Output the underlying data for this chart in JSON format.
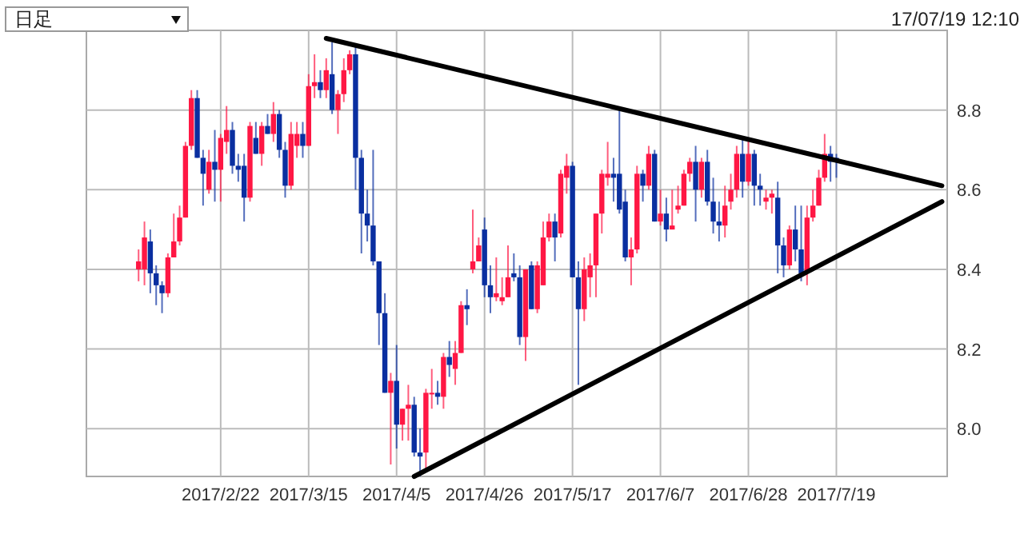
{
  "chart_data": {
    "type": "candlestick",
    "annotations": [
      "日足",
      "17/07/19 12:10"
    ],
    "grid": true,
    "ylim": [
      7.88,
      9.0
    ],
    "categories": [
      null,
      null,
      null,
      null,
      null,
      null,
      null,
      null,
      null,
      null,
      null,
      null,
      null,
      null,
      null,
      null,
      null,
      null,
      null,
      null,
      null,
      null,
      "2017/2/22",
      null,
      null,
      null,
      null,
      null,
      null,
      null,
      null,
      null,
      null,
      null,
      null,
      null,
      null,
      "2017/3/15",
      null,
      null,
      null,
      null,
      null,
      null,
      null,
      null,
      null,
      null,
      null,
      null,
      null,
      null,
      "2017/4/5",
      null,
      null,
      null,
      null,
      null,
      null,
      null,
      null,
      null,
      null,
      null,
      null,
      null,
      null,
      "2017/4/26",
      null,
      null,
      null,
      null,
      null,
      null,
      null,
      null,
      null,
      null,
      null,
      null,
      null,
      null,
      "2017/5/17",
      null,
      null,
      null,
      null,
      null,
      null,
      null,
      null,
      null,
      null,
      null,
      null,
      null,
      null,
      "2017/6/7",
      null,
      null,
      null,
      null,
      null,
      null,
      null,
      null,
      null,
      null,
      null,
      null,
      null,
      null,
      "2017/6/28",
      null,
      null,
      null,
      null,
      null,
      null,
      null,
      null,
      null,
      null,
      null,
      null,
      null,
      null,
      "2017/7/19",
      null,
      null,
      null,
      null,
      null,
      null,
      null,
      null,
      null,
      null,
      null,
      null,
      null,
      null,
      null,
      null,
      null,
      null
    ],
    "yticks": [
      {
        "value": 8.0,
        "label": "8.0"
      },
      8.2,
      8.4,
      8.6,
      8.8
    ],
    "ohlc": [
      null,
      null,
      null,
      null,
      null,
      null,
      null,
      null,
      [
        8.4,
        8.45,
        8.37,
        8.42
      ],
      [
        8.4,
        8.52,
        8.36,
        8.48
      ],
      [
        8.47,
        8.5,
        8.34,
        8.39
      ],
      [
        8.39,
        8.41,
        8.31,
        8.36
      ],
      [
        8.36,
        8.37,
        8.29,
        8.34
      ],
      [
        8.34,
        8.44,
        8.33,
        8.43
      ],
      [
        8.43,
        8.54,
        8.43,
        8.47
      ],
      [
        8.47,
        8.56,
        8.46,
        8.53
      ],
      [
        8.53,
        8.72,
        8.53,
        8.71
      ],
      [
        8.71,
        8.85,
        8.7,
        8.83
      ],
      [
        8.83,
        8.85,
        8.68,
        8.68
      ],
      [
        8.68,
        8.7,
        8.56,
        8.64
      ],
      [
        8.6,
        8.7,
        8.59,
        8.67
      ],
      [
        8.67,
        8.75,
        8.57,
        8.65
      ],
      [
        8.65,
        8.74,
        8.57,
        8.73
      ],
      [
        8.72,
        8.81,
        8.69,
        8.75
      ],
      [
        8.75,
        8.77,
        8.64,
        8.66
      ],
      [
        8.66,
        8.69,
        8.62,
        8.65
      ],
      [
        8.66,
        8.69,
        8.52,
        8.58
      ],
      [
        8.58,
        8.77,
        8.57,
        8.76
      ],
      [
        8.73,
        8.77,
        8.69,
        8.69
      ],
      [
        8.69,
        8.77,
        8.66,
        8.76
      ],
      [
        8.76,
        8.79,
        8.74,
        8.74
      ],
      [
        8.74,
        8.82,
        8.72,
        8.79
      ],
      [
        8.79,
        8.8,
        8.68,
        8.7
      ],
      [
        8.7,
        8.72,
        8.58,
        8.61
      ],
      [
        8.61,
        8.77,
        8.6,
        8.74
      ],
      [
        8.71,
        8.77,
        8.68,
        8.74
      ],
      [
        8.74,
        8.77,
        8.68,
        8.71
      ],
      [
        8.71,
        8.89,
        8.71,
        8.86
      ],
      [
        8.86,
        8.94,
        8.83,
        8.87
      ],
      [
        8.87,
        8.9,
        8.83,
        8.85
      ],
      [
        8.85,
        8.93,
        8.83,
        8.9
      ],
      [
        8.89,
        8.97,
        8.79,
        8.8
      ],
      [
        8.8,
        8.85,
        8.74,
        8.84
      ],
      [
        8.84,
        8.93,
        8.82,
        8.9
      ],
      [
        8.9,
        8.95,
        8.89,
        8.94
      ],
      [
        8.94,
        8.96,
        8.6,
        8.68
      ],
      [
        8.68,
        8.7,
        8.44,
        8.54
      ],
      [
        8.54,
        8.6,
        8.47,
        8.51
      ],
      [
        8.51,
        8.7,
        8.41,
        8.42
      ],
      [
        8.42,
        8.42,
        8.21,
        8.29
      ],
      [
        8.29,
        8.34,
        8.09,
        8.09
      ],
      [
        8.09,
        8.14,
        7.91,
        8.12
      ],
      [
        8.12,
        8.21,
        7.95,
        8.01
      ],
      [
        8.01,
        8.05,
        7.97,
        8.05
      ],
      [
        8.05,
        8.11,
        7.97,
        8.06
      ],
      [
        8.06,
        8.08,
        7.93,
        7.94
      ],
      [
        7.94,
        8.0,
        7.88,
        7.93
      ],
      [
        7.94,
        8.1,
        7.9,
        8.09
      ],
      [
        8.09,
        8.15,
        8.05,
        8.09
      ],
      [
        8.09,
        8.12,
        8.06,
        8.08
      ],
      [
        8.08,
        8.19,
        8.05,
        8.18
      ],
      [
        8.18,
        8.22,
        8.13,
        8.16
      ],
      [
        8.15,
        8.22,
        8.11,
        8.19
      ],
      [
        8.19,
        8.32,
        8.19,
        8.31
      ],
      [
        8.31,
        8.35,
        8.26,
        8.3
      ],
      [
        8.4,
        8.55,
        8.39,
        8.42
      ],
      [
        8.42,
        8.48,
        8.42,
        8.46
      ],
      [
        8.5,
        8.53,
        8.33,
        8.36
      ],
      [
        8.36,
        8.41,
        8.29,
        8.33
      ],
      [
        8.33,
        8.43,
        8.32,
        8.34
      ],
      [
        8.32,
        8.38,
        8.31,
        8.33
      ],
      [
        8.33,
        8.46,
        8.33,
        8.38
      ],
      [
        8.39,
        8.44,
        8.37,
        8.38
      ],
      [
        8.38,
        8.41,
        8.21,
        8.23
      ],
      [
        8.23,
        8.4,
        8.17,
        8.4
      ],
      [
        8.41,
        8.42,
        8.3,
        8.3
      ],
      [
        8.3,
        8.42,
        8.29,
        8.41
      ],
      [
        8.36,
        8.52,
        8.36,
        8.48
      ],
      [
        8.48,
        8.54,
        8.47,
        8.52
      ],
      [
        8.52,
        8.54,
        8.42,
        8.48
      ],
      [
        8.49,
        8.65,
        8.48,
        8.64
      ],
      [
        8.63,
        8.69,
        8.59,
        8.66
      ],
      [
        8.66,
        8.67,
        8.38,
        8.38
      ],
      [
        8.38,
        8.42,
        8.11,
        8.3
      ],
      [
        8.3,
        8.43,
        8.27,
        8.4
      ],
      [
        8.38,
        8.44,
        8.33,
        8.41
      ],
      [
        8.41,
        8.54,
        8.33,
        8.54
      ],
      [
        8.54,
        8.65,
        8.49,
        8.64
      ],
      [
        8.63,
        8.72,
        8.61,
        8.64
      ],
      [
        8.64,
        8.68,
        8.57,
        8.63
      ],
      [
        8.64,
        8.8,
        8.54,
        8.55
      ],
      [
        8.57,
        8.6,
        8.42,
        8.43
      ],
      [
        8.43,
        8.48,
        8.36,
        8.45
      ],
      [
        8.45,
        8.66,
        8.44,
        8.64
      ],
      [
        8.64,
        8.65,
        8.57,
        8.61
      ],
      [
        8.61,
        8.71,
        8.6,
        8.69
      ],
      [
        8.69,
        8.7,
        8.52,
        8.52
      ],
      [
        8.52,
        8.6,
        8.51,
        8.54
      ],
      [
        8.54,
        8.58,
        8.47,
        8.5
      ],
      [
        8.5,
        8.6,
        8.5,
        8.51
      ],
      [
        8.55,
        8.61,
        8.54,
        8.56
      ],
      [
        8.56,
        8.65,
        8.56,
        8.64
      ],
      [
        8.64,
        8.68,
        8.62,
        8.67
      ],
      [
        8.67,
        8.71,
        8.52,
        8.6
      ],
      [
        8.6,
        8.68,
        8.58,
        8.67
      ],
      [
        8.67,
        8.7,
        8.56,
        8.57
      ],
      [
        8.57,
        8.63,
        8.49,
        8.52
      ],
      [
        8.52,
        8.57,
        8.47,
        8.51
      ],
      [
        8.51,
        8.61,
        8.48,
        8.56
      ],
      [
        8.57,
        8.64,
        8.55,
        8.6
      ],
      [
        8.6,
        8.71,
        8.58,
        8.69
      ],
      [
        8.69,
        8.73,
        8.58,
        8.62
      ],
      [
        8.62,
        8.73,
        8.61,
        8.69
      ],
      [
        8.69,
        8.7,
        8.56,
        8.61
      ],
      [
        8.61,
        8.64,
        8.56,
        8.6
      ],
      [
        8.57,
        8.6,
        8.55,
        8.58
      ],
      [
        8.58,
        8.6,
        8.54,
        8.59
      ],
      [
        8.58,
        8.62,
        8.39,
        8.46
      ],
      [
        8.46,
        8.48,
        8.38,
        8.41
      ],
      [
        8.41,
        8.51,
        8.4,
        8.5
      ],
      [
        8.5,
        8.56,
        8.42,
        8.45
      ],
      [
        8.45,
        8.56,
        8.37,
        8.39
      ],
      [
        8.39,
        8.56,
        8.36,
        8.53
      ],
      [
        8.53,
        8.6,
        8.52,
        8.56
      ],
      [
        8.56,
        8.65,
        8.56,
        8.63
      ],
      [
        8.63,
        8.74,
        8.62,
        8.69
      ],
      [
        8.69,
        8.71,
        8.62,
        8.67
      ],
      [
        8.68,
        8.69,
        8.63,
        8.67
      ],
      null,
      null,
      null,
      null,
      null,
      null,
      null,
      null,
      null,
      null,
      null,
      null,
      null,
      null,
      null,
      null,
      null,
      null
    ],
    "series": [
      {
        "type": "line",
        "color": "#000000",
        "values": [
          null,
          null,
          null,
          null,
          null,
          null,
          null,
          null,
          null,
          null,
          null,
          null,
          null,
          null,
          null,
          null,
          null,
          null,
          null,
          null,
          null,
          null,
          null,
          null,
          null,
          null,
          null,
          null,
          null,
          null,
          null,
          null,
          null,
          null,
          null,
          null,
          null,
          null,
          null,
          null,
          8.98,
          null,
          null,
          null,
          null,
          null,
          null,
          null,
          null,
          null,
          null,
          null,
          null,
          null,
          null,
          null,
          null,
          null,
          null,
          null,
          null,
          null,
          null,
          null,
          null,
          null,
          null,
          null,
          null,
          null,
          null,
          null,
          null,
          null,
          null,
          null,
          null,
          null,
          null,
          null,
          null,
          null,
          null,
          null,
          null,
          null,
          null,
          null,
          null,
          null,
          null,
          null,
          null,
          null,
          null,
          null,
          null,
          null,
          null,
          null,
          null,
          null,
          null,
          null,
          null,
          null,
          null,
          null,
          null,
          null,
          null,
          null,
          null,
          null,
          null,
          null,
          null,
          null,
          null,
          null,
          null,
          null,
          null,
          null,
          null,
          null,
          null,
          null,
          null,
          null,
          null,
          null,
          null,
          null,
          null,
          null,
          null,
          null,
          null,
          null,
          null,
          null,
          null,
          null,
          null,
          8.61
        ]
      },
      {
        "type": "line",
        "color": "#000000",
        "values": [
          null,
          null,
          null,
          null,
          null,
          null,
          null,
          null,
          null,
          null,
          null,
          null,
          null,
          null,
          null,
          null,
          null,
          null,
          null,
          null,
          null,
          null,
          null,
          null,
          null,
          null,
          null,
          null,
          null,
          null,
          null,
          null,
          null,
          null,
          null,
          null,
          null,
          null,
          null,
          null,
          null,
          null,
          null,
          null,
          null,
          null,
          null,
          null,
          null,
          null,
          null,
          null,
          null,
          null,
          null,
          7.88,
          null,
          null,
          null,
          null,
          null,
          null,
          null,
          null,
          null,
          null,
          null,
          null,
          null,
          null,
          null,
          null,
          null,
          null,
          null,
          null,
          null,
          null,
          null,
          null,
          null,
          null,
          null,
          null,
          null,
          null,
          null,
          null,
          null,
          null,
          null,
          null,
          null,
          null,
          null,
          null,
          null,
          null,
          null,
          null,
          null,
          null,
          null,
          null,
          null,
          null,
          null,
          null,
          null,
          null,
          null,
          null,
          null,
          null,
          null,
          null,
          null,
          null,
          null,
          null,
          null,
          null,
          null,
          null,
          null,
          null,
          null,
          null,
          null,
          null,
          null,
          null,
          null,
          null,
          null,
          null,
          null,
          null,
          null,
          null,
          null,
          null,
          null,
          null,
          null,
          8.57
        ]
      }
    ]
  }
}
